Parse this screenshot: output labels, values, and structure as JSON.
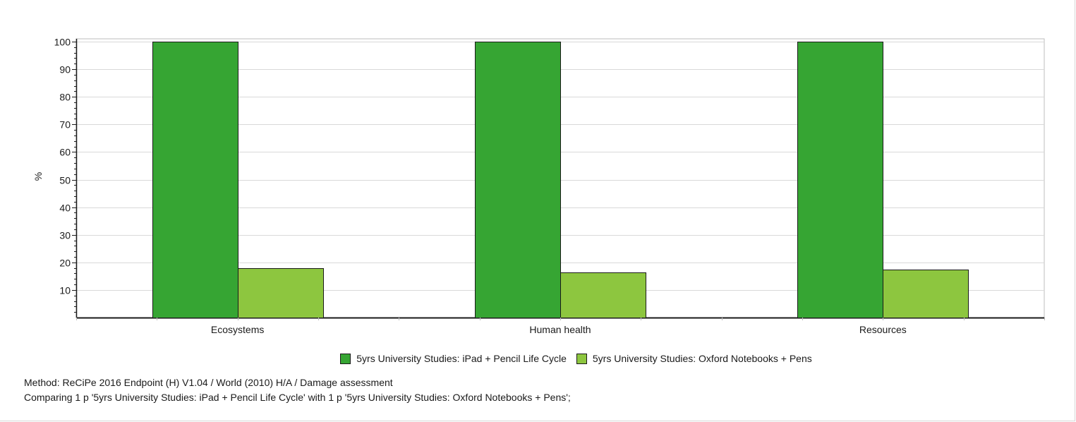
{
  "chart_data": {
    "type": "bar",
    "categories": [
      "Ecosystems",
      "Human health",
      "Resources"
    ],
    "series": [
      {
        "name": "5yrs University Studies: iPad + Pencil Life Cycle",
        "color": "#36a533",
        "values": [
          100,
          100,
          100
        ]
      },
      {
        "name": "5yrs University Studies: Oxford Notebooks + Pens",
        "color": "#8dc63f",
        "values": [
          17.8,
          16.3,
          17.3
        ]
      }
    ],
    "title": "",
    "xlabel": "",
    "ylabel": "%",
    "ylim": [
      0,
      100
    ],
    "yticks": [
      10,
      20,
      30,
      40,
      50,
      60,
      70,
      80,
      90,
      100
    ],
    "grid": true,
    "legend_position": "bottom"
  },
  "footer": {
    "method": "Method: ReCiPe 2016 Endpoint (H) V1.04 / World (2010) H/A / Damage assessment",
    "comparison": "Comparing 1 p '5yrs University Studies: iPad + Pencil Life Cycle' with 1 p '5yrs University Studies: Oxford Notebooks + Pens';"
  }
}
